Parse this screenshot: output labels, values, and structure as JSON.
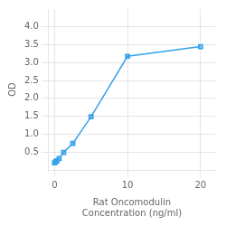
{
  "chart_data": {
    "type": "line",
    "x": [
      0,
      0.156,
      0.313,
      0.625,
      1.25,
      2.5,
      5,
      10,
      20
    ],
    "values": [
      0.197,
      0.229,
      0.259,
      0.322,
      0.491,
      0.742,
      1.488,
      3.179,
      3.448
    ],
    "marker": "square",
    "xlabel": "Rat Oncomodulin\nConcentration (ng/ml)",
    "ylabel": "OD",
    "xlim": [
      -0.8,
      22
    ],
    "ylim": [
      0.0,
      4.5
    ],
    "xticks": [
      0,
      10,
      20
    ],
    "yticks": [
      0.5,
      {
        "value": 1.0,
        "label": "1.0"
      },
      1.5,
      {
        "value": 2.0,
        "label": "2.0"
      },
      2.5,
      {
        "value": 3.0,
        "label": "3.0"
      },
      3.5,
      {
        "value": 4.0,
        "label": "4.0"
      }
    ],
    "grid": true
  }
}
